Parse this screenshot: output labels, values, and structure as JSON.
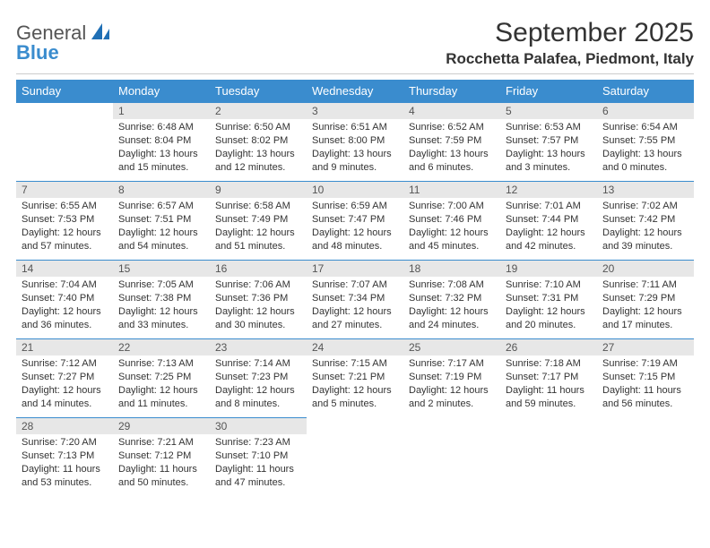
{
  "brand": {
    "name_line1": "General",
    "name_line2": "Blue"
  },
  "title": "September 2025",
  "location": "Rocchetta Palafea, Piedmont, Italy",
  "colors": {
    "header_bg": "#3a8cce",
    "daynum_bg": "#e7e7e7",
    "rule": "#3a8cce",
    "page_bg": "#ffffff",
    "text": "#333333"
  },
  "weekdays": [
    "Sunday",
    "Monday",
    "Tuesday",
    "Wednesday",
    "Thursday",
    "Friday",
    "Saturday"
  ],
  "layout": {
    "leading_blanks": 1
  },
  "days": [
    {
      "n": "1",
      "sunrise": "Sunrise: 6:48 AM",
      "sunset": "Sunset: 8:04 PM",
      "daylight": "Daylight: 13 hours and 15 minutes."
    },
    {
      "n": "2",
      "sunrise": "Sunrise: 6:50 AM",
      "sunset": "Sunset: 8:02 PM",
      "daylight": "Daylight: 13 hours and 12 minutes."
    },
    {
      "n": "3",
      "sunrise": "Sunrise: 6:51 AM",
      "sunset": "Sunset: 8:00 PM",
      "daylight": "Daylight: 13 hours and 9 minutes."
    },
    {
      "n": "4",
      "sunrise": "Sunrise: 6:52 AM",
      "sunset": "Sunset: 7:59 PM",
      "daylight": "Daylight: 13 hours and 6 minutes."
    },
    {
      "n": "5",
      "sunrise": "Sunrise: 6:53 AM",
      "sunset": "Sunset: 7:57 PM",
      "daylight": "Daylight: 13 hours and 3 minutes."
    },
    {
      "n": "6",
      "sunrise": "Sunrise: 6:54 AM",
      "sunset": "Sunset: 7:55 PM",
      "daylight": "Daylight: 13 hours and 0 minutes."
    },
    {
      "n": "7",
      "sunrise": "Sunrise: 6:55 AM",
      "sunset": "Sunset: 7:53 PM",
      "daylight": "Daylight: 12 hours and 57 minutes."
    },
    {
      "n": "8",
      "sunrise": "Sunrise: 6:57 AM",
      "sunset": "Sunset: 7:51 PM",
      "daylight": "Daylight: 12 hours and 54 minutes."
    },
    {
      "n": "9",
      "sunrise": "Sunrise: 6:58 AM",
      "sunset": "Sunset: 7:49 PM",
      "daylight": "Daylight: 12 hours and 51 minutes."
    },
    {
      "n": "10",
      "sunrise": "Sunrise: 6:59 AM",
      "sunset": "Sunset: 7:47 PM",
      "daylight": "Daylight: 12 hours and 48 minutes."
    },
    {
      "n": "11",
      "sunrise": "Sunrise: 7:00 AM",
      "sunset": "Sunset: 7:46 PM",
      "daylight": "Daylight: 12 hours and 45 minutes."
    },
    {
      "n": "12",
      "sunrise": "Sunrise: 7:01 AM",
      "sunset": "Sunset: 7:44 PM",
      "daylight": "Daylight: 12 hours and 42 minutes."
    },
    {
      "n": "13",
      "sunrise": "Sunrise: 7:02 AM",
      "sunset": "Sunset: 7:42 PM",
      "daylight": "Daylight: 12 hours and 39 minutes."
    },
    {
      "n": "14",
      "sunrise": "Sunrise: 7:04 AM",
      "sunset": "Sunset: 7:40 PM",
      "daylight": "Daylight: 12 hours and 36 minutes."
    },
    {
      "n": "15",
      "sunrise": "Sunrise: 7:05 AM",
      "sunset": "Sunset: 7:38 PM",
      "daylight": "Daylight: 12 hours and 33 minutes."
    },
    {
      "n": "16",
      "sunrise": "Sunrise: 7:06 AM",
      "sunset": "Sunset: 7:36 PM",
      "daylight": "Daylight: 12 hours and 30 minutes."
    },
    {
      "n": "17",
      "sunrise": "Sunrise: 7:07 AM",
      "sunset": "Sunset: 7:34 PM",
      "daylight": "Daylight: 12 hours and 27 minutes."
    },
    {
      "n": "18",
      "sunrise": "Sunrise: 7:08 AM",
      "sunset": "Sunset: 7:32 PM",
      "daylight": "Daylight: 12 hours and 24 minutes."
    },
    {
      "n": "19",
      "sunrise": "Sunrise: 7:10 AM",
      "sunset": "Sunset: 7:31 PM",
      "daylight": "Daylight: 12 hours and 20 minutes."
    },
    {
      "n": "20",
      "sunrise": "Sunrise: 7:11 AM",
      "sunset": "Sunset: 7:29 PM",
      "daylight": "Daylight: 12 hours and 17 minutes."
    },
    {
      "n": "21",
      "sunrise": "Sunrise: 7:12 AM",
      "sunset": "Sunset: 7:27 PM",
      "daylight": "Daylight: 12 hours and 14 minutes."
    },
    {
      "n": "22",
      "sunrise": "Sunrise: 7:13 AM",
      "sunset": "Sunset: 7:25 PM",
      "daylight": "Daylight: 12 hours and 11 minutes."
    },
    {
      "n": "23",
      "sunrise": "Sunrise: 7:14 AM",
      "sunset": "Sunset: 7:23 PM",
      "daylight": "Daylight: 12 hours and 8 minutes."
    },
    {
      "n": "24",
      "sunrise": "Sunrise: 7:15 AM",
      "sunset": "Sunset: 7:21 PM",
      "daylight": "Daylight: 12 hours and 5 minutes."
    },
    {
      "n": "25",
      "sunrise": "Sunrise: 7:17 AM",
      "sunset": "Sunset: 7:19 PM",
      "daylight": "Daylight: 12 hours and 2 minutes."
    },
    {
      "n": "26",
      "sunrise": "Sunrise: 7:18 AM",
      "sunset": "Sunset: 7:17 PM",
      "daylight": "Daylight: 11 hours and 59 minutes."
    },
    {
      "n": "27",
      "sunrise": "Sunrise: 7:19 AM",
      "sunset": "Sunset: 7:15 PM",
      "daylight": "Daylight: 11 hours and 56 minutes."
    },
    {
      "n": "28",
      "sunrise": "Sunrise: 7:20 AM",
      "sunset": "Sunset: 7:13 PM",
      "daylight": "Daylight: 11 hours and 53 minutes."
    },
    {
      "n": "29",
      "sunrise": "Sunrise: 7:21 AM",
      "sunset": "Sunset: 7:12 PM",
      "daylight": "Daylight: 11 hours and 50 minutes."
    },
    {
      "n": "30",
      "sunrise": "Sunrise: 7:23 AM",
      "sunset": "Sunset: 7:10 PM",
      "daylight": "Daylight: 11 hours and 47 minutes."
    }
  ]
}
